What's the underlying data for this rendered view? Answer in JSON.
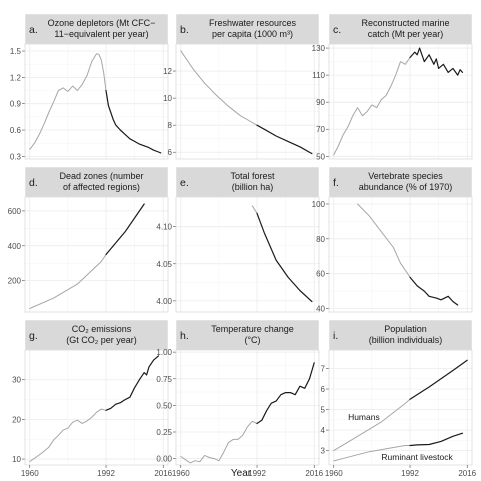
{
  "figure": {
    "xlabel": "Year"
  },
  "colors": {
    "before": "#a6a6a6",
    "after": "#1a1a1a",
    "strip": "#d9d9d9",
    "grid": "#ebebeb"
  },
  "chart_data": [
    {
      "type": "line",
      "letter": "a.",
      "title": [
        "Ozone depletors (Mt CFC−",
        "11−equivalent per year)"
      ],
      "xlim": [
        1958,
        2018
      ],
      "ylim": [
        0.27,
        1.58
      ],
      "yticks": [
        0.3,
        0.6,
        0.9,
        1.2,
        1.5
      ],
      "ytick_labels": [
        "0.3",
        "0.6",
        "0.9",
        "1.2",
        "1.5"
      ],
      "xticks": [
        1960,
        1992,
        2016
      ],
      "series": [
        {
          "segment": "before",
          "x": [
            1960,
            1962,
            1964,
            1966,
            1968,
            1970,
            1972,
            1974,
            1976,
            1978,
            1980,
            1982,
            1984,
            1986,
            1988,
            1989,
            1990,
            1991,
            1992
          ],
          "y": [
            0.38,
            0.45,
            0.55,
            0.67,
            0.8,
            0.92,
            1.05,
            1.08,
            1.04,
            1.1,
            1.05,
            1.12,
            1.22,
            1.38,
            1.47,
            1.46,
            1.4,
            1.25,
            1.05
          ]
        },
        {
          "segment": "after",
          "x": [
            1992,
            1993,
            1994,
            1995,
            1996,
            1998,
            2000,
            2002,
            2004,
            2006,
            2008,
            2010,
            2012,
            2014,
            2015
          ],
          "y": [
            1.05,
            0.88,
            0.8,
            0.72,
            0.66,
            0.6,
            0.55,
            0.5,
            0.47,
            0.44,
            0.42,
            0.4,
            0.37,
            0.35,
            0.34
          ]
        }
      ]
    },
    {
      "type": "line",
      "letter": "b.",
      "title": [
        "Freshwater resources",
        "per capita (1000 m³)"
      ],
      "xlim": [
        1958,
        2018
      ],
      "ylim": [
        5.5,
        14.0
      ],
      "yticks": [
        6,
        8,
        10,
        12
      ],
      "ytick_labels": [
        "6",
        "8",
        "10",
        "12"
      ],
      "xticks": [
        1960,
        1992,
        2016
      ],
      "series": [
        {
          "segment": "before",
          "x": [
            1960,
            1965,
            1970,
            1975,
            1980,
            1985,
            1990,
            1992
          ],
          "y": [
            13.5,
            12.2,
            11.1,
            10.2,
            9.4,
            8.7,
            8.2,
            8.0
          ]
        },
        {
          "segment": "after",
          "x": [
            1992,
            1995,
            2000,
            2005,
            2010,
            2015
          ],
          "y": [
            8.0,
            7.7,
            7.2,
            6.8,
            6.4,
            5.9
          ]
        }
      ]
    },
    {
      "type": "line",
      "letter": "c.",
      "title": [
        "Reconstructed marine",
        "catch (Mt per year)"
      ],
      "xlim": [
        1958,
        2018
      ],
      "ylim": [
        48,
        133
      ],
      "yticks": [
        50,
        70,
        90,
        110,
        130
      ],
      "ytick_labels": [
        "50",
        "70",
        "90",
        "110",
        "130"
      ],
      "xticks": [
        1960,
        1992,
        2016
      ],
      "series": [
        {
          "segment": "before",
          "x": [
            1960,
            1962,
            1964,
            1966,
            1968,
            1970,
            1972,
            1974,
            1976,
            1978,
            1980,
            1982,
            1984,
            1986,
            1988,
            1990,
            1992
          ],
          "y": [
            51,
            58,
            66,
            72,
            80,
            86,
            80,
            83,
            88,
            86,
            92,
            95,
            102,
            110,
            120,
            118,
            123
          ]
        },
        {
          "segment": "after",
          "x": [
            1992,
            1994,
            1995,
            1996,
            1998,
            2000,
            2002,
            2003,
            2004,
            2006,
            2008,
            2010,
            2012,
            2013,
            2014
          ],
          "y": [
            123,
            127,
            125,
            130,
            120,
            125,
            118,
            122,
            115,
            118,
            112,
            115,
            110,
            114,
            112
          ]
        }
      ]
    },
    {
      "type": "line",
      "letter": "d.",
      "title": [
        "Dead zones (number",
        "of affected regions)"
      ],
      "xlim": [
        1958,
        2018
      ],
      "ylim": [
        20,
        680
      ],
      "yticks": [
        200,
        400,
        600
      ],
      "ytick_labels": [
        "200",
        "400",
        "600"
      ],
      "xticks": [
        1960,
        1992,
        2016
      ],
      "series": [
        {
          "segment": "before",
          "x": [
            1960,
            1970,
            1980,
            1990,
            1992
          ],
          "y": [
            40,
            100,
            180,
            310,
            350
          ]
        },
        {
          "segment": "after",
          "x": [
            1992,
            2000,
            2008
          ],
          "y": [
            350,
            480,
            640
          ]
        }
      ]
    },
    {
      "type": "line",
      "letter": "e.",
      "title": [
        "Total forest",
        "(billion ha)"
      ],
      "xlim": [
        1958,
        2018
      ],
      "ylim": [
        3.985,
        4.14
      ],
      "yticks": [
        4.0,
        4.05,
        4.1
      ],
      "ytick_labels": [
        "4.00",
        "4.05",
        "4.10"
      ],
      "xticks": [
        1960,
        1992,
        2016
      ],
      "series": [
        {
          "segment": "before",
          "x": [
            1990,
            1992
          ],
          "y": [
            4.128,
            4.118
          ]
        },
        {
          "segment": "after",
          "x": [
            1992,
            1995,
            2000,
            2005,
            2010,
            2015
          ],
          "y": [
            4.118,
            4.092,
            4.055,
            4.032,
            4.014,
            3.999
          ]
        }
      ]
    },
    {
      "type": "line",
      "letter": "f.",
      "title": [
        "Vertebrate species",
        "abundance (% of 1970)"
      ],
      "xlim": [
        1958,
        2018
      ],
      "ylim": [
        38,
        104
      ],
      "yticks": [
        40,
        60,
        80,
        100
      ],
      "ytick_labels": [
        "40",
        "60",
        "80",
        "100"
      ],
      "xticks": [
        1960,
        1992,
        2016
      ],
      "series": [
        {
          "segment": "before",
          "x": [
            1970,
            1975,
            1980,
            1985,
            1988,
            1990,
            1992
          ],
          "y": [
            100,
            93,
            84,
            75,
            66,
            62,
            58
          ]
        },
        {
          "segment": "after",
          "x": [
            1992,
            1995,
            1998,
            2000,
            2003,
            2005,
            2008,
            2010,
            2012
          ],
          "y": [
            58,
            53,
            50,
            47,
            46,
            45,
            47,
            44,
            42
          ]
        }
      ]
    },
    {
      "type": "line",
      "letter": "g.",
      "title": [
        "CO₂ emissions",
        "(Gt CO₂ per year)"
      ],
      "xlim": [
        1958,
        2018
      ],
      "ylim": [
        8.5,
        37.5
      ],
      "yticks": [
        10,
        20,
        30
      ],
      "ytick_labels": [
        "10",
        "20",
        "30"
      ],
      "xticks": [
        1960,
        1992,
        2016
      ],
      "xtick_labels": [
        "1960",
        "1992",
        "2016"
      ],
      "series": [
        {
          "segment": "before",
          "x": [
            1960,
            1962,
            1965,
            1968,
            1970,
            1972,
            1974,
            1976,
            1978,
            1980,
            1982,
            1984,
            1986,
            1988,
            1990,
            1992
          ],
          "y": [
            9.4,
            10.2,
            11.5,
            13.0,
            14.8,
            16.0,
            17.3,
            17.8,
            19.3,
            19.8,
            19.0,
            19.6,
            20.5,
            21.8,
            22.6,
            22.3
          ]
        },
        {
          "segment": "after",
          "x": [
            1992,
            1994,
            1996,
            1998,
            2000,
            2002,
            2004,
            2006,
            2008,
            2009,
            2010,
            2012,
            2014
          ],
          "y": [
            22.3,
            22.8,
            23.8,
            24.2,
            25.0,
            25.6,
            28.0,
            30.0,
            31.8,
            31.2,
            33.2,
            35.0,
            36.0
          ]
        }
      ]
    },
    {
      "type": "line",
      "letter": "h.",
      "title": [
        "Temperature change",
        "(°C)"
      ],
      "xlim": [
        1958,
        2018
      ],
      "ylim": [
        -0.06,
        1.02
      ],
      "yticks": [
        0.0,
        0.25,
        0.5,
        0.75,
        1.0
      ],
      "ytick_labels": [
        "0.00",
        "0.25",
        "0.50",
        "0.75",
        "1.00"
      ],
      "xticks": [
        1960,
        1992,
        2016
      ],
      "xtick_labels": [
        "1960",
        "1992",
        "2016"
      ],
      "series": [
        {
          "segment": "before",
          "x": [
            1960,
            1962,
            1964,
            1966,
            1968,
            1970,
            1972,
            1974,
            1976,
            1978,
            1980,
            1982,
            1984,
            1986,
            1988,
            1990,
            1992
          ],
          "y": [
            0.02,
            -0.01,
            -0.04,
            -0.02,
            -0.03,
            0.03,
            0.01,
            0.0,
            -0.02,
            0.06,
            0.15,
            0.18,
            0.18,
            0.22,
            0.3,
            0.35,
            0.33
          ]
        },
        {
          "segment": "after",
          "x": [
            1992,
            1994,
            1996,
            1998,
            2000,
            2002,
            2004,
            2006,
            2008,
            2010,
            2012,
            2014,
            2016
          ],
          "y": [
            0.33,
            0.36,
            0.45,
            0.52,
            0.54,
            0.6,
            0.62,
            0.62,
            0.6,
            0.68,
            0.66,
            0.75,
            0.9
          ]
        }
      ]
    },
    {
      "type": "line",
      "letter": "i.",
      "title": [
        "Population",
        "(billion individuals)"
      ],
      "xlim": [
        1958,
        2018
      ],
      "ylim": [
        2.3,
        7.9
      ],
      "yticks": [
        3,
        4,
        5,
        6,
        7
      ],
      "ytick_labels": [
        "3",
        "4",
        "5",
        "6",
        "7"
      ],
      "xticks": [
        1960,
        1992,
        2016
      ],
      "xtick_labels": [
        "1960",
        "1992",
        "2016"
      ],
      "annotations": [
        {
          "text": "Humans",
          "x": 1966,
          "y": 4.5
        },
        {
          "text": "Ruminant livestock",
          "x": 1980,
          "y": 2.55
        }
      ],
      "series": [
        {
          "segment": "before",
          "x": [
            1960,
            1970,
            1980,
            1990,
            1992
          ],
          "y": [
            3.0,
            3.7,
            4.4,
            5.3,
            5.5
          ]
        },
        {
          "segment": "after",
          "x": [
            1992,
            2000,
            2010,
            2016
          ],
          "y": [
            5.5,
            6.1,
            6.9,
            7.4
          ]
        },
        {
          "segment": "before",
          "x": [
            1960,
            1965,
            1970,
            1975,
            1980,
            1985,
            1990,
            1992
          ],
          "y": [
            2.5,
            2.65,
            2.8,
            2.95,
            3.05,
            3.15,
            3.25,
            3.25
          ]
        },
        {
          "segment": "after",
          "x": [
            1992,
            1995,
            2000,
            2005,
            2010,
            2014
          ],
          "y": [
            3.25,
            3.28,
            3.3,
            3.45,
            3.7,
            3.85
          ]
        }
      ]
    }
  ]
}
